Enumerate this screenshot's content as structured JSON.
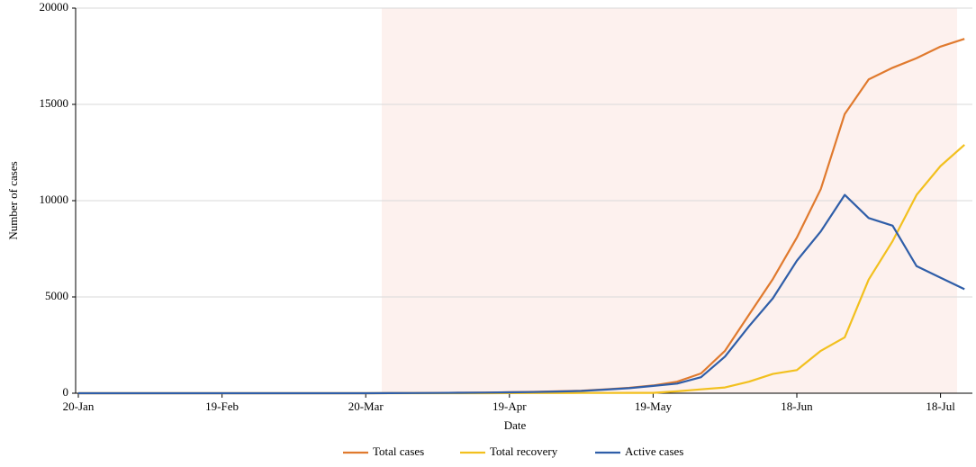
{
  "chart_data": {
    "type": "line",
    "x_label": "Date",
    "y_label": "Number of cases",
    "categories": [
      "20-Jan",
      null,
      null,
      null,
      null,
      null,
      "19-Feb",
      null,
      null,
      null,
      null,
      null,
      "20-Mar",
      null,
      null,
      null,
      null,
      null,
      "19-Apr",
      null,
      null,
      null,
      null,
      null,
      "19-May",
      null,
      null,
      null,
      null,
      null,
      "18-Jun",
      null,
      null,
      null,
      null,
      null,
      "18-Jul",
      null
    ],
    "series": [
      {
        "name": "Total cases",
        "color": "#e07a2e",
        "values": [
          0,
          0,
          0,
          0,
          0,
          0,
          0,
          0,
          0,
          0,
          0,
          0,
          2,
          5,
          10,
          15,
          25,
          35,
          50,
          70,
          100,
          130,
          200,
          280,
          400,
          600,
          1030,
          2200,
          4070,
          5930,
          8080,
          10600,
          14500,
          16300,
          16900,
          17400,
          18000,
          18400
        ]
      },
      {
        "name": "Total recovery",
        "color": "#f2c01e",
        "values": [
          0,
          0,
          0,
          0,
          0,
          0,
          0,
          0,
          0,
          0,
          0,
          0,
          0,
          0,
          0,
          0,
          0,
          2,
          5,
          8,
          10,
          12,
          15,
          18,
          20,
          100,
          200,
          300,
          600,
          1000,
          1200,
          2200,
          2900,
          5900,
          7900,
          10300,
          11800,
          12900
        ]
      },
      {
        "name": "Active cases",
        "color": "#2f5ea8",
        "values": [
          0,
          0,
          0,
          0,
          0,
          0,
          0,
          0,
          0,
          0,
          0,
          0,
          2,
          5,
          10,
          15,
          25,
          33,
          45,
          62,
          90,
          118,
          185,
          262,
          380,
          500,
          830,
          1900,
          3470,
          4930,
          6880,
          8400,
          10300,
          9100,
          8700,
          6600,
          6000,
          5400
        ]
      }
    ],
    "ylim": [
      0,
      20000
    ],
    "yticks": [
      0,
      5000,
      10000,
      15000,
      20000
    ],
    "grid": true,
    "legend": "bottom"
  }
}
